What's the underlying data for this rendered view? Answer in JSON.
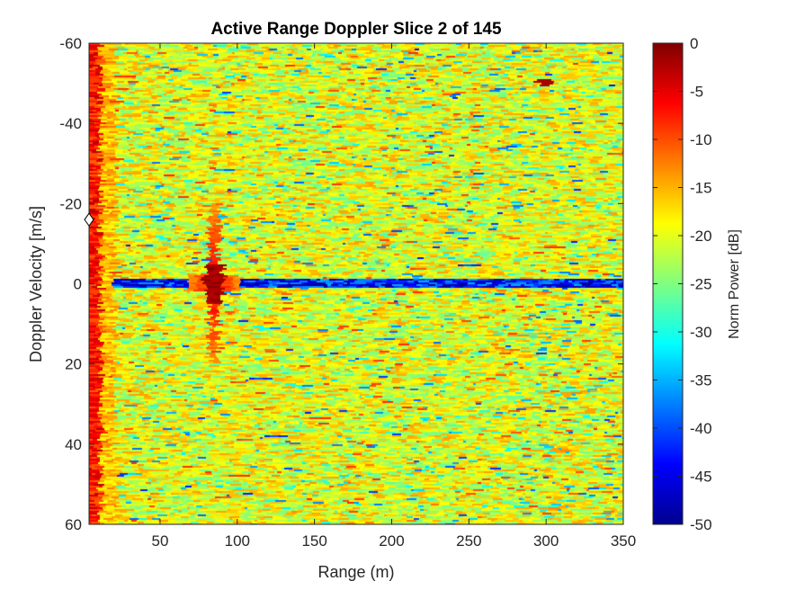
{
  "chart_data": {
    "type": "heatmap",
    "title": "Active Range Doppler Slice 2 of 145",
    "xlabel": "Range (m)",
    "ylabel": "Doppler Velocity [m/s]",
    "xlim": [
      4,
      350
    ],
    "ylim": [
      -60,
      60
    ],
    "y_reversed": true,
    "x_ticks": [
      "50",
      "100",
      "150",
      "200",
      "250",
      "300",
      "350"
    ],
    "y_ticks": [
      "-60",
      "-40",
      "-20",
      "0",
      "20",
      "40",
      "60"
    ],
    "colormap": "jet",
    "colorbar": {
      "label": "Norm Power [dB]",
      "range": [
        -50,
        0
      ],
      "ticks": [
        "0",
        "-5",
        "-10",
        "-15",
        "-20",
        "-25",
        "-30",
        "-35",
        "-40",
        "-45",
        "-50"
      ]
    },
    "background_level_db": -20,
    "features": [
      {
        "name": "near-range clutter",
        "range_m": [
          4,
          12
        ],
        "velocity_ms": [
          -60,
          60
        ],
        "level_db": -3
      },
      {
        "name": "target",
        "range_m": 85,
        "velocity_ms": 0,
        "level_db": 0
      },
      {
        "name": "zero-Doppler notch",
        "range_m": [
          20,
          350
        ],
        "velocity_ms": 0,
        "level_db": -42
      },
      {
        "name": "weak target",
        "range_m": 300,
        "velocity_ms": -50,
        "level_db": -2
      }
    ],
    "marker": {
      "shape": "diamond",
      "range_m": 4,
      "velocity_ms": -16
    }
  }
}
